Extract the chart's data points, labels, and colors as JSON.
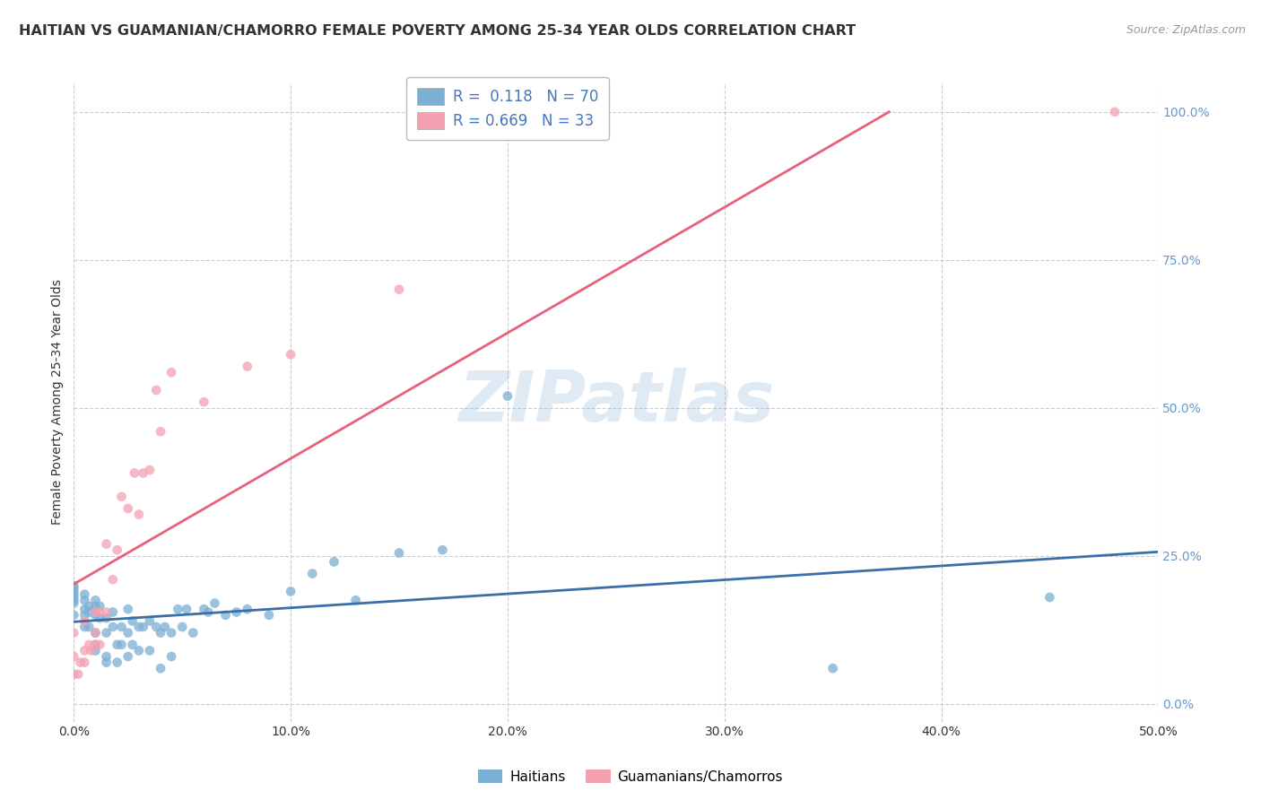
{
  "title": "HAITIAN VS GUAMANIAN/CHAMORRO FEMALE POVERTY AMONG 25-34 YEAR OLDS CORRELATION CHART",
  "source": "Source: ZipAtlas.com",
  "ylabel": "Female Poverty Among 25-34 Year Olds",
  "xlim": [
    0.0,
    0.5
  ],
  "ylim": [
    -0.03,
    1.05
  ],
  "title_fontsize": 11.5,
  "source_fontsize": 9,
  "watermark": "ZIPatlas",
  "legend_R1": "R =  0.118   N = 70",
  "legend_R2": "R = 0.669   N = 33",
  "color_blue": "#7BAFD4",
  "color_pink": "#F4A0B0",
  "color_blue_line": "#3A6FA8",
  "color_pink_line": "#E8607A",
  "color_right_axis": "#6699CC",
  "grid_color": "#CCCCCC",
  "background": "#FFFFFF",
  "haitian_x": [
    0.0,
    0.0,
    0.0,
    0.0,
    0.0,
    0.0,
    0.0,
    0.0,
    0.005,
    0.005,
    0.005,
    0.005,
    0.005,
    0.007,
    0.007,
    0.007,
    0.01,
    0.01,
    0.01,
    0.01,
    0.01,
    0.01,
    0.012,
    0.012,
    0.015,
    0.015,
    0.015,
    0.015,
    0.018,
    0.018,
    0.02,
    0.02,
    0.022,
    0.022,
    0.025,
    0.025,
    0.025,
    0.027,
    0.027,
    0.03,
    0.03,
    0.032,
    0.035,
    0.035,
    0.038,
    0.04,
    0.04,
    0.042,
    0.045,
    0.045,
    0.048,
    0.05,
    0.052,
    0.055,
    0.06,
    0.062,
    0.065,
    0.07,
    0.075,
    0.08,
    0.09,
    0.1,
    0.11,
    0.12,
    0.13,
    0.15,
    0.17,
    0.2,
    0.35,
    0.45
  ],
  "haitian_y": [
    0.15,
    0.17,
    0.175,
    0.18,
    0.185,
    0.19,
    0.195,
    0.2,
    0.13,
    0.15,
    0.16,
    0.175,
    0.185,
    0.13,
    0.155,
    0.165,
    0.09,
    0.1,
    0.12,
    0.15,
    0.165,
    0.175,
    0.145,
    0.165,
    0.07,
    0.08,
    0.12,
    0.145,
    0.13,
    0.155,
    0.07,
    0.1,
    0.1,
    0.13,
    0.08,
    0.12,
    0.16,
    0.1,
    0.14,
    0.09,
    0.13,
    0.13,
    0.09,
    0.14,
    0.13,
    0.06,
    0.12,
    0.13,
    0.08,
    0.12,
    0.16,
    0.13,
    0.16,
    0.12,
    0.16,
    0.155,
    0.17,
    0.15,
    0.155,
    0.16,
    0.15,
    0.19,
    0.22,
    0.24,
    0.175,
    0.255,
    0.26,
    0.52,
    0.06,
    0.18
  ],
  "guamanian_x": [
    0.0,
    0.0,
    0.0,
    0.002,
    0.003,
    0.005,
    0.005,
    0.005,
    0.007,
    0.008,
    0.01,
    0.01,
    0.01,
    0.012,
    0.012,
    0.015,
    0.015,
    0.018,
    0.02,
    0.022,
    0.025,
    0.028,
    0.03,
    0.032,
    0.035,
    0.038,
    0.04,
    0.045,
    0.06,
    0.08,
    0.1,
    0.15,
    0.48
  ],
  "guamanian_y": [
    0.05,
    0.08,
    0.12,
    0.05,
    0.07,
    0.07,
    0.09,
    0.14,
    0.1,
    0.09,
    0.1,
    0.12,
    0.155,
    0.1,
    0.155,
    0.155,
    0.27,
    0.21,
    0.26,
    0.35,
    0.33,
    0.39,
    0.32,
    0.39,
    0.395,
    0.53,
    0.46,
    0.56,
    0.51,
    0.57,
    0.59,
    0.7,
    1.0
  ],
  "xtick_labels": [
    "0.0%",
    "10.0%",
    "20.0%",
    "30.0%",
    "40.0%",
    "50.0%"
  ],
  "xtick_vals": [
    0.0,
    0.1,
    0.2,
    0.3,
    0.4,
    0.5
  ],
  "ytick_right_labels": [
    "0.0%",
    "25.0%",
    "50.0%",
    "75.0%",
    "100.0%"
  ],
  "ytick_right_vals": [
    0.0,
    0.25,
    0.5,
    0.75,
    1.0
  ],
  "legend_label_blue": "Haitians",
  "legend_label_pink": "Guamanians/Chamorros"
}
